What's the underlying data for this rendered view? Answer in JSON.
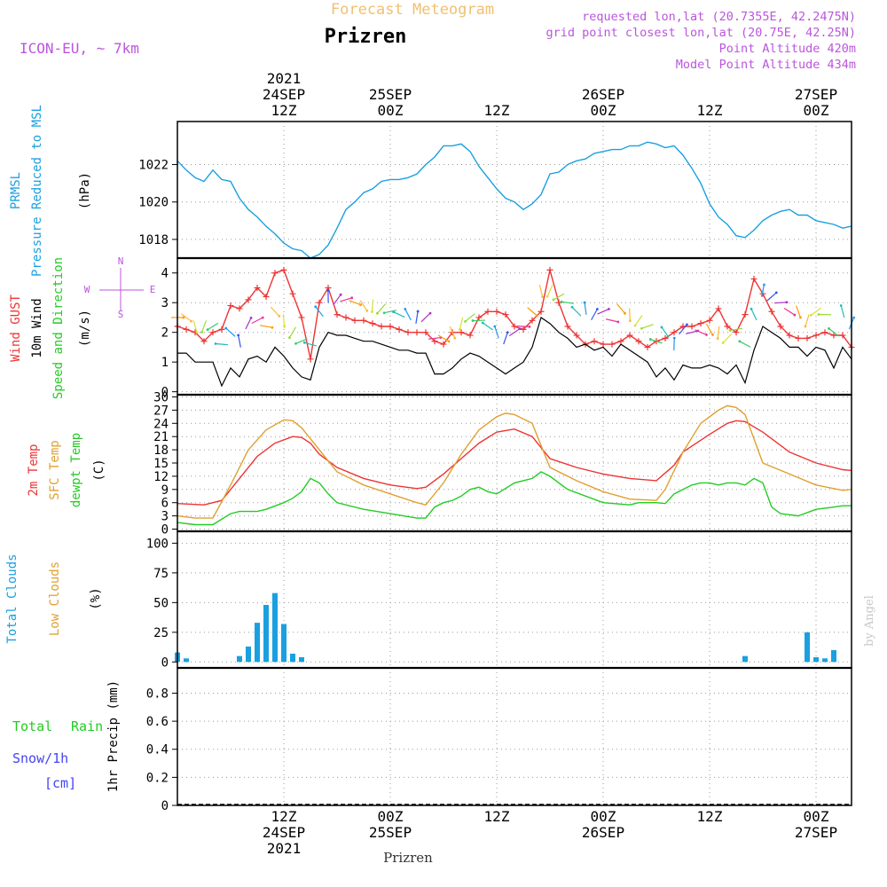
{
  "header": {
    "title": "Forecast Meteogram",
    "station": "Prizren",
    "model": "ICON-EU, ~ 7km",
    "requested": "requested lon,lat (20.7355E, 42.2475N)",
    "grid_point": "grid point closest lon,lat (20.75E, 42.25N)",
    "point_altitude": "Point Altitude 420m",
    "model_altitude": "Model Point Altitude 434m",
    "footer_station": "Prizren",
    "credit": "by Angel"
  },
  "colors": {
    "pressure": "#1aa0e0",
    "gust": "#ee3333",
    "wind10m": "#000000",
    "temp2m": "#ee3333",
    "sfc": "#e0a030",
    "dew": "#22cc22",
    "total_clouds": "#1aa0e0",
    "low_clouds": "#e0a030",
    "rain": "#22cc22",
    "snow": "#4444ee",
    "header_purple": "#bb55dd",
    "header_orange": "#f0c070"
  },
  "time_axis": {
    "top_labels": [
      {
        "h": 12,
        "lines": [
          "2021",
          "24SEP",
          "12Z"
        ]
      },
      {
        "h": 24,
        "lines": [
          "25SEP",
          "00Z"
        ]
      },
      {
        "h": 36,
        "lines": [
          "12Z"
        ]
      },
      {
        "h": 48,
        "lines": [
          "26SEP",
          "00Z"
        ]
      },
      {
        "h": 60,
        "lines": [
          "12Z"
        ]
      },
      {
        "h": 72,
        "lines": [
          "27SEP",
          "00Z"
        ]
      }
    ],
    "bottom_labels": [
      {
        "h": 12,
        "lines": [
          "12Z",
          "24SEP",
          "2021"
        ]
      },
      {
        "h": 24,
        "lines": [
          "00Z",
          "25SEP"
        ]
      },
      {
        "h": 36,
        "lines": [
          "12Z"
        ]
      },
      {
        "h": 48,
        "lines": [
          "00Z",
          "26SEP"
        ]
      },
      {
        "h": 60,
        "lines": [
          "12Z"
        ]
      },
      {
        "h": 72,
        "lines": [
          "00Z",
          "27SEP"
        ]
      }
    ]
  },
  "panels": {
    "pressure": {
      "labels": [
        "PRMSL",
        "Pressure Reduced to MSL",
        "(hPa)"
      ]
    },
    "wind": {
      "labels": [
        "Wind GUST",
        "10m Wind",
        "Speed and Direction",
        "(m/s)"
      ],
      "compass": [
        "N",
        "W",
        "E",
        "S"
      ]
    },
    "temp": {
      "labels": [
        "2m Temp",
        "SFC Temp",
        "dewpt Temp",
        "(C)"
      ]
    },
    "clouds": {
      "labels": [
        "Total Clouds",
        "Low Clouds",
        "(%)"
      ]
    },
    "precip": {
      "labels": [
        "Total",
        "Rain",
        "Snow/1h",
        "[cm]",
        "1hr Precip (mm)"
      ]
    }
  },
  "chart_data": [
    {
      "type": "line",
      "panel": "pressure",
      "xlabel": "",
      "ylabel": "(hPa)",
      "ylim": [
        1017,
        1024.3
      ],
      "yticks": [
        1018,
        1020,
        1022
      ],
      "series": [
        {
          "name": "PRMSL",
          "x": [
            0,
            1,
            2,
            3,
            4,
            5,
            6,
            7,
            8,
            9,
            10,
            11,
            12,
            13,
            14,
            15,
            16,
            17,
            18,
            19,
            20,
            21,
            22,
            23,
            24,
            25,
            26,
            27,
            28,
            29,
            30,
            31,
            32,
            33,
            34,
            35,
            36,
            37,
            38,
            39,
            40,
            41,
            42,
            43,
            44,
            45,
            46,
            47,
            48,
            49,
            50,
            51,
            52,
            53,
            54,
            55,
            56,
            57,
            58,
            59,
            60,
            61,
            62,
            63,
            64,
            65,
            66,
            67,
            68,
            69,
            70,
            71,
            72,
            73,
            74,
            75,
            76
          ],
          "values": [
            1022.2,
            1021.7,
            1021.3,
            1021.1,
            1021.7,
            1021.2,
            1021.1,
            1020.2,
            1019.6,
            1019.2,
            1018.7,
            1018.3,
            1017.8,
            1017.5,
            1017.4,
            1017.0,
            1017.2,
            1017.7,
            1018.6,
            1019.6,
            1020.0,
            1020.5,
            1020.7,
            1021.1,
            1021.2,
            1021.2,
            1021.3,
            1021.5,
            1022.0,
            1022.4,
            1023.0,
            1023.0,
            1023.1,
            1022.7,
            1021.9,
            1021.3,
            1020.7,
            1020.2,
            1020.0,
            1019.6,
            1019.9,
            1020.4,
            1021.5,
            1021.6,
            1022.0,
            1022.2,
            1022.3,
            1022.6,
            1022.7,
            1022.8,
            1022.8,
            1023.0,
            1023.0,
            1023.2,
            1023.1,
            1022.9,
            1023.0,
            1022.5,
            1021.8,
            1021.0,
            1019.9,
            1019.2,
            1018.8,
            1018.2,
            1018.1,
            1018.5,
            1019.0,
            1019.3,
            1019.5,
            1019.6,
            1019.3,
            1019.3,
            1019.0,
            1018.9,
            1018.8,
            1018.6,
            1018.7
          ]
        }
      ]
    },
    {
      "type": "line",
      "panel": "wind",
      "xlabel": "",
      "ylabel": "(m/s)",
      "ylim": [
        -0.1,
        4.5
      ],
      "yticks": [
        0,
        1,
        2,
        3,
        4
      ],
      "series": [
        {
          "name": "Wind GUST",
          "x": [
            0,
            1,
            2,
            3,
            4,
            5,
            6,
            7,
            8,
            9,
            10,
            11,
            12,
            13,
            14,
            15,
            16,
            17,
            18,
            19,
            20,
            21,
            22,
            23,
            24,
            25,
            26,
            27,
            28,
            29,
            30,
            31,
            32,
            33,
            34,
            35,
            36,
            37,
            38,
            39,
            40,
            41,
            42,
            43,
            44,
            45,
            46,
            47,
            48,
            49,
            50,
            51,
            52,
            53,
            54,
            55,
            56,
            57,
            58,
            59,
            60,
            61,
            62,
            63,
            64,
            65,
            66,
            67,
            68,
            69,
            70,
            71,
            72,
            73,
            74,
            75,
            76
          ],
          "values": [
            2.2,
            2.1,
            2.0,
            1.7,
            2.0,
            2.1,
            2.9,
            2.8,
            3.1,
            3.5,
            3.2,
            4.0,
            4.1,
            3.3,
            2.5,
            1.1,
            3.0,
            3.5,
            2.6,
            2.5,
            2.4,
            2.4,
            2.3,
            2.2,
            2.2,
            2.1,
            2.0,
            2.0,
            2.0,
            1.7,
            1.6,
            2.0,
            2.0,
            1.9,
            2.5,
            2.7,
            2.7,
            2.6,
            2.2,
            2.1,
            2.4,
            2.7,
            4.1,
            3.0,
            2.2,
            1.9,
            1.6,
            1.7,
            1.6,
            1.6,
            1.7,
            1.9,
            1.7,
            1.5,
            1.7,
            1.8,
            2.0,
            2.2,
            2.2,
            2.3,
            2.4,
            2.8,
            2.2,
            2.0,
            2.6,
            3.8,
            3.3,
            2.7,
            2.2,
            1.9,
            1.8,
            1.8,
            1.9,
            2.0,
            1.9,
            1.9,
            1.5
          ]
        },
        {
          "name": "10m Wind",
          "x": [
            0,
            1,
            2,
            3,
            4,
            5,
            6,
            7,
            8,
            9,
            10,
            11,
            12,
            13,
            14,
            15,
            16,
            17,
            18,
            19,
            20,
            21,
            22,
            23,
            24,
            25,
            26,
            27,
            28,
            29,
            30,
            31,
            32,
            33,
            34,
            35,
            36,
            37,
            38,
            39,
            40,
            41,
            42,
            43,
            44,
            45,
            46,
            47,
            48,
            49,
            50,
            51,
            52,
            53,
            54,
            55,
            56,
            57,
            58,
            59,
            60,
            61,
            62,
            63,
            64,
            65,
            66,
            67,
            68,
            69,
            70,
            71,
            72,
            73,
            74,
            75,
            76
          ],
          "values": [
            1.3,
            1.3,
            1.0,
            1.0,
            1.0,
            0.2,
            0.8,
            0.5,
            1.1,
            1.2,
            1.0,
            1.5,
            1.2,
            0.8,
            0.5,
            0.4,
            1.5,
            2.0,
            1.9,
            1.9,
            1.8,
            1.7,
            1.7,
            1.6,
            1.5,
            1.4,
            1.4,
            1.3,
            1.3,
            0.6,
            0.6,
            0.8,
            1.1,
            1.3,
            1.2,
            1.0,
            0.8,
            0.6,
            0.8,
            1.0,
            1.5,
            2.5,
            2.3,
            2.0,
            1.8,
            1.5,
            1.6,
            1.4,
            1.5,
            1.2,
            1.6,
            1.4,
            1.2,
            1.0,
            0.5,
            0.8,
            0.4,
            0.9,
            0.8,
            0.8,
            0.9,
            0.8,
            0.6,
            0.9,
            0.3,
            1.4,
            2.2,
            2.0,
            1.8,
            1.5,
            1.5,
            1.2,
            1.5,
            1.4,
            0.8,
            1.5,
            1.1
          ]
        }
      ]
    },
    {
      "type": "line",
      "panel": "temp",
      "xlabel": "",
      "ylabel": "(C)",
      "ylim": [
        -0.5,
        30.5
      ],
      "yticks": [
        0,
        3,
        6,
        9,
        12,
        15,
        18,
        21,
        24,
        27,
        30
      ],
      "series": [
        {
          "name": "2m Temp",
          "x": [
            0,
            3,
            5,
            7,
            9,
            11,
            13,
            14,
            15,
            16,
            18,
            21,
            24,
            27,
            28,
            30,
            32,
            34,
            36,
            38,
            40,
            42,
            45,
            48,
            51,
            54,
            56,
            57,
            60,
            62,
            63,
            64,
            66,
            69,
            72,
            75,
            76
          ],
          "values": [
            5.8,
            5.5,
            6.5,
            11.5,
            16.5,
            19.5,
            21.0,
            20.8,
            19.5,
            17.0,
            14.0,
            11.5,
            10.0,
            9.2,
            9.5,
            12.5,
            16.0,
            19.5,
            22.0,
            22.7,
            21.0,
            16.0,
            14.0,
            12.5,
            11.5,
            11.0,
            14.5,
            17.5,
            21.5,
            24.0,
            24.6,
            24.4,
            22.0,
            17.5,
            15.0,
            13.5,
            13.3
          ]
        },
        {
          "name": "SFC Temp",
          "x": [
            0,
            2,
            4,
            6,
            8,
            10,
            12,
            13,
            14,
            16,
            18,
            21,
            24,
            27,
            28,
            30,
            32,
            34,
            36,
            37,
            38,
            40,
            42,
            45,
            48,
            51,
            54,
            55,
            57,
            59,
            61,
            62,
            63,
            64,
            66,
            69,
            72,
            75,
            76
          ],
          "values": [
            3.0,
            2.5,
            2.5,
            10.0,
            18.0,
            22.5,
            24.8,
            24.6,
            23.0,
            18.0,
            13.0,
            10.0,
            8.0,
            6.0,
            5.5,
            10.5,
            17.0,
            22.5,
            25.5,
            26.3,
            26.0,
            24.0,
            14.0,
            11.0,
            8.5,
            6.8,
            6.5,
            9.0,
            17.5,
            24.0,
            27.0,
            28.0,
            27.6,
            26.0,
            15.0,
            12.5,
            10.0,
            8.8,
            9.0
          ]
        },
        {
          "name": "dewpt Temp",
          "x": [
            0,
            2,
            4,
            6,
            7,
            8,
            9,
            10,
            12,
            13,
            14,
            15,
            16,
            17,
            18,
            21,
            24,
            27,
            28,
            29,
            30,
            31,
            32,
            33,
            34,
            35,
            36,
            38,
            39,
            40,
            41,
            42,
            44,
            48,
            51,
            52,
            53,
            54,
            55,
            56,
            58,
            59,
            60,
            61,
            62,
            63,
            64,
            65,
            66,
            67,
            68,
            70,
            72,
            74,
            75,
            76
          ],
          "values": [
            1.5,
            1.0,
            1.0,
            3.5,
            4.0,
            4.0,
            4.0,
            4.5,
            6.0,
            7.0,
            8.5,
            11.5,
            10.5,
            8.0,
            6.0,
            4.5,
            3.5,
            2.5,
            2.5,
            5.0,
            6.0,
            6.5,
            7.5,
            9.0,
            9.5,
            8.5,
            8.0,
            10.5,
            11.0,
            11.5,
            13.0,
            12.0,
            9.0,
            6.0,
            5.5,
            6.0,
            6.0,
            6.0,
            5.8,
            8.0,
            10.0,
            10.5,
            10.5,
            10.0,
            10.5,
            10.5,
            10.0,
            11.5,
            10.5,
            5.0,
            3.5,
            3.0,
            4.5,
            5.0,
            5.3,
            5.3
          ]
        }
      ]
    },
    {
      "type": "bar",
      "panel": "clouds",
      "xlabel": "",
      "ylabel": "(%)",
      "ylim": [
        -5,
        110
      ],
      "yticks": [
        0,
        25,
        50,
        75,
        100
      ],
      "series": [
        {
          "name": "Total Clouds",
          "x": [
            0,
            1,
            7,
            8,
            9,
            10,
            11,
            12,
            13,
            14,
            64,
            71,
            72,
            73,
            74
          ],
          "values": [
            8,
            3,
            5,
            13,
            33,
            48,
            58,
            32,
            7,
            4,
            5,
            25,
            4,
            3,
            10
          ]
        }
      ]
    },
    {
      "type": "bar",
      "panel": "precip",
      "xlabel": "",
      "ylabel": "1hr Precip (mm)",
      "ylim": [
        0,
        0.98
      ],
      "yticks": [
        0,
        0.2,
        0.4,
        0.6,
        0.8
      ],
      "series": [
        {
          "name": "Total Rain",
          "values": []
        }
      ]
    }
  ]
}
